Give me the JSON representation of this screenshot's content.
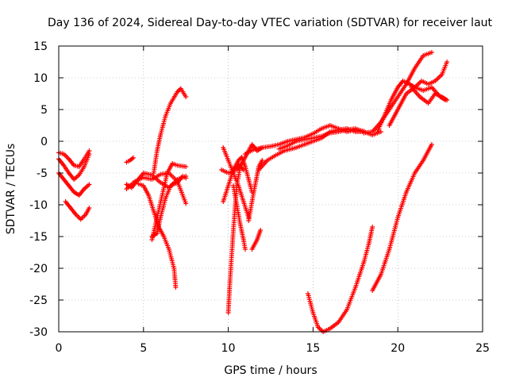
{
  "chart_data": {
    "type": "scatter",
    "title": "Day 136 of 2024, Sidereal Day-to-day VTEC variation (SDTVAR) for receiver laut",
    "xlabel": "GPS time / hours",
    "ylabel": "SDTVAR / TECUs",
    "xlim": [
      0,
      25
    ],
    "ylim": [
      -30,
      15
    ],
    "xticks": [
      0,
      5,
      10,
      15,
      20,
      25
    ],
    "yticks": [
      -30,
      -25,
      -20,
      -15,
      -10,
      -5,
      0,
      5,
      10,
      15
    ],
    "grid": true,
    "marker": "+",
    "marker_color": "#ff0000",
    "series": [
      {
        "values": [
          [
            0.0,
            -1.8
          ],
          [
            0.3,
            -2.0
          ],
          [
            0.6,
            -2.8
          ],
          [
            0.9,
            -3.8
          ],
          [
            1.2,
            -4.0
          ],
          [
            1.5,
            -2.8
          ],
          [
            1.8,
            -1.5
          ]
        ]
      },
      {
        "values": [
          [
            0.0,
            -2.8
          ],
          [
            0.3,
            -3.8
          ],
          [
            0.6,
            -5.0
          ],
          [
            0.9,
            -6.0
          ],
          [
            1.2,
            -5.3
          ],
          [
            1.5,
            -4.0
          ],
          [
            1.8,
            -2.0
          ]
        ]
      },
      {
        "values": [
          [
            0.0,
            -5.0
          ],
          [
            0.3,
            -6.0
          ],
          [
            0.6,
            -7.0
          ],
          [
            0.9,
            -8.0
          ],
          [
            1.2,
            -8.5
          ],
          [
            1.5,
            -7.5
          ],
          [
            1.8,
            -6.8
          ]
        ]
      },
      {
        "values": [
          [
            0.4,
            -9.5
          ],
          [
            0.7,
            -10.5
          ],
          [
            1.0,
            -11.5
          ],
          [
            1.3,
            -12.3
          ],
          [
            1.6,
            -11.5
          ],
          [
            1.8,
            -10.5
          ]
        ]
      },
      {
        "values": [
          [
            4.0,
            -3.3
          ],
          [
            4.2,
            -3.0
          ],
          [
            4.4,
            -2.6
          ]
        ]
      },
      {
        "values": [
          [
            4.0,
            -6.8
          ],
          [
            4.3,
            -7.3
          ],
          [
            4.6,
            -6.3
          ],
          [
            5.0,
            -5.0
          ],
          [
            5.5,
            -5.3
          ],
          [
            6.0,
            -6.5
          ],
          [
            6.5,
            -7.3
          ],
          [
            7.0,
            -6.0
          ],
          [
            7.5,
            -5.5
          ]
        ]
      },
      {
        "values": [
          [
            4.0,
            -7.5
          ],
          [
            4.5,
            -6.3
          ],
          [
            5.0,
            -5.7
          ],
          [
            5.5,
            -6.0
          ],
          [
            6.0,
            -5.2
          ],
          [
            6.5,
            -5.0
          ],
          [
            7.0,
            -6.3
          ],
          [
            7.5,
            -9.8
          ]
        ]
      },
      {
        "values": [
          [
            5.5,
            -15.5
          ],
          [
            5.8,
            -12.0
          ],
          [
            6.1,
            -8.5
          ],
          [
            6.4,
            -5.0
          ],
          [
            6.7,
            -3.5
          ],
          [
            7.0,
            -3.8
          ],
          [
            7.5,
            -4.0
          ]
        ]
      },
      {
        "values": [
          [
            4.7,
            -6.7
          ],
          [
            5.0,
            -7.0
          ],
          [
            5.3,
            -8.5
          ],
          [
            5.6,
            -11.0
          ],
          [
            5.9,
            -13.5
          ],
          [
            6.2,
            -15.0
          ],
          [
            6.5,
            -17.0
          ],
          [
            6.8,
            -20.0
          ],
          [
            6.9,
            -23.0
          ]
        ]
      },
      {
        "values": [
          [
            5.5,
            -15.0
          ],
          [
            5.8,
            -14.5
          ],
          [
            6.0,
            -12.0
          ],
          [
            6.3,
            -9.0
          ],
          [
            6.6,
            -7.0
          ],
          [
            7.0,
            -6.5
          ],
          [
            7.3,
            -5.5
          ],
          [
            7.5,
            -5.8
          ]
        ]
      },
      {
        "values": [
          [
            5.6,
            -5.0
          ],
          [
            5.8,
            -1.5
          ],
          [
            6.0,
            1.0
          ],
          [
            6.3,
            4.0
          ],
          [
            6.6,
            6.0
          ],
          [
            7.0,
            7.8
          ],
          [
            7.2,
            8.3
          ],
          [
            7.5,
            7.0
          ]
        ]
      },
      {
        "values": [
          [
            9.7,
            -9.5
          ],
          [
            10.0,
            -7.0
          ],
          [
            10.3,
            -4.5
          ],
          [
            10.6,
            -3.0
          ],
          [
            10.8,
            -2.5
          ],
          [
            11.0,
            -4.0
          ],
          [
            11.2,
            -6.0
          ],
          [
            11.4,
            -8.0
          ]
        ]
      },
      {
        "values": [
          [
            10.0,
            -27.0
          ],
          [
            10.1,
            -22.0
          ],
          [
            10.3,
            -14.0
          ],
          [
            10.5,
            -7.0
          ],
          [
            10.7,
            -4.0
          ],
          [
            10.9,
            -4.5
          ]
        ]
      },
      {
        "values": [
          [
            10.3,
            -7.0
          ],
          [
            10.5,
            -10.0
          ],
          [
            10.7,
            -13.0
          ],
          [
            10.9,
            -15.5
          ],
          [
            11.0,
            -17.0
          ]
        ]
      },
      {
        "values": [
          [
            9.7,
            -1.0
          ],
          [
            10.0,
            -3.0
          ],
          [
            10.3,
            -5.0
          ],
          [
            10.6,
            -7.0
          ],
          [
            10.9,
            -9.5
          ],
          [
            11.2,
            -12.0
          ]
        ]
      },
      {
        "values": [
          [
            10.5,
            -4.5
          ],
          [
            10.8,
            -3.5
          ],
          [
            11.1,
            -2.0
          ],
          [
            11.4,
            -0.5
          ],
          [
            11.7,
            -1.5
          ],
          [
            12.0,
            -1.0
          ]
        ]
      },
      {
        "values": [
          [
            11.2,
            -12.5
          ],
          [
            11.5,
            -8.0
          ],
          [
            11.8,
            -4.0
          ],
          [
            12.0,
            -3.0
          ]
        ]
      },
      {
        "values": [
          [
            11.4,
            -17.0
          ],
          [
            11.7,
            -15.5
          ],
          [
            11.9,
            -14.0
          ]
        ]
      },
      {
        "values": [
          [
            9.6,
            -4.5
          ],
          [
            10.0,
            -5.0
          ],
          [
            10.3,
            -4.8
          ],
          [
            10.6,
            -3.5
          ]
        ]
      },
      {
        "values": [
          [
            11.8,
            -4.5
          ],
          [
            12.3,
            -3.0
          ],
          [
            12.8,
            -2.2
          ],
          [
            13.3,
            -1.5
          ],
          [
            14.0,
            -1.0
          ],
          [
            14.5,
            -0.5
          ],
          [
            15.0,
            0.0
          ],
          [
            15.5,
            0.5
          ],
          [
            16.0,
            1.5
          ],
          [
            16.5,
            1.8
          ],
          [
            17.0,
            2.0
          ],
          [
            17.5,
            1.5
          ],
          [
            18.0,
            1.5
          ]
        ]
      },
      {
        "values": [
          [
            11.0,
            -2.0
          ],
          [
            11.5,
            -1.3
          ],
          [
            12.0,
            -1.0
          ],
          [
            12.5,
            -0.8
          ],
          [
            13.0,
            -0.5
          ],
          [
            13.5,
            0.0
          ],
          [
            14.0,
            0.3
          ],
          [
            14.5,
            0.6
          ],
          [
            15.0,
            1.2
          ],
          [
            15.5,
            2.0
          ],
          [
            16.0,
            2.5
          ],
          [
            16.5,
            2.0
          ],
          [
            17.0,
            1.5
          ],
          [
            17.5,
            1.8
          ],
          [
            18.0,
            1.6
          ]
        ]
      },
      {
        "values": [
          [
            13.0,
            -1.2
          ],
          [
            13.5,
            -0.7
          ],
          [
            14.0,
            0.0
          ],
          [
            14.5,
            0.3
          ],
          [
            15.0,
            0.5
          ],
          [
            15.5,
            0.8
          ],
          [
            16.0,
            1.3
          ],
          [
            16.5,
            1.5
          ],
          [
            17.0,
            1.8
          ],
          [
            17.5,
            2.0
          ],
          [
            18.0,
            1.5
          ],
          [
            18.5,
            1.0
          ],
          [
            19.0,
            1.5
          ]
        ]
      },
      {
        "values": [
          [
            14.7,
            -24.0
          ],
          [
            15.0,
            -27.0
          ],
          [
            15.3,
            -29.3
          ],
          [
            15.6,
            -30.0
          ],
          [
            16.0,
            -29.5
          ],
          [
            16.5,
            -28.5
          ],
          [
            17.0,
            -26.5
          ],
          [
            17.5,
            -23.0
          ],
          [
            18.0,
            -19.0
          ],
          [
            18.3,
            -16.0
          ],
          [
            18.5,
            -13.5
          ]
        ]
      },
      {
        "values": [
          [
            18.5,
            -23.5
          ],
          [
            19.0,
            -21.0
          ],
          [
            19.5,
            -17.0
          ],
          [
            20.0,
            -12.0
          ],
          [
            20.5,
            -8.0
          ],
          [
            21.0,
            -5.0
          ],
          [
            21.5,
            -3.0
          ],
          [
            21.8,
            -1.5
          ],
          [
            22.0,
            -0.5
          ]
        ]
      },
      {
        "values": [
          [
            18.0,
            1.3
          ],
          [
            18.5,
            1.5
          ],
          [
            19.0,
            3.0
          ],
          [
            19.5,
            5.0
          ],
          [
            20.0,
            7.0
          ],
          [
            20.5,
            9.0
          ],
          [
            21.0,
            11.5
          ],
          [
            21.5,
            13.5
          ],
          [
            22.0,
            14.0
          ]
        ]
      },
      {
        "values": [
          [
            18.8,
            1.5
          ],
          [
            19.2,
            4.0
          ],
          [
            19.6,
            6.5
          ],
          [
            20.0,
            8.5
          ],
          [
            20.3,
            9.5
          ],
          [
            20.7,
            9.0
          ],
          [
            21.0,
            8.5
          ],
          [
            21.4,
            9.5
          ],
          [
            21.8,
            9.0
          ],
          [
            22.2,
            9.5
          ],
          [
            22.6,
            10.5
          ],
          [
            22.9,
            12.5
          ]
        ]
      },
      {
        "values": [
          [
            19.5,
            2.5
          ],
          [
            20.0,
            5.0
          ],
          [
            20.5,
            7.5
          ],
          [
            21.0,
            8.5
          ],
          [
            21.5,
            8.0
          ],
          [
            22.0,
            8.5
          ],
          [
            22.5,
            7.0
          ],
          [
            22.8,
            6.5
          ]
        ]
      },
      {
        "values": [
          [
            20.8,
            8.5
          ],
          [
            21.3,
            7.0
          ],
          [
            21.8,
            6.0
          ],
          [
            22.2,
            7.5
          ],
          [
            22.6,
            7.0
          ],
          [
            22.9,
            6.5
          ]
        ]
      }
    ]
  }
}
